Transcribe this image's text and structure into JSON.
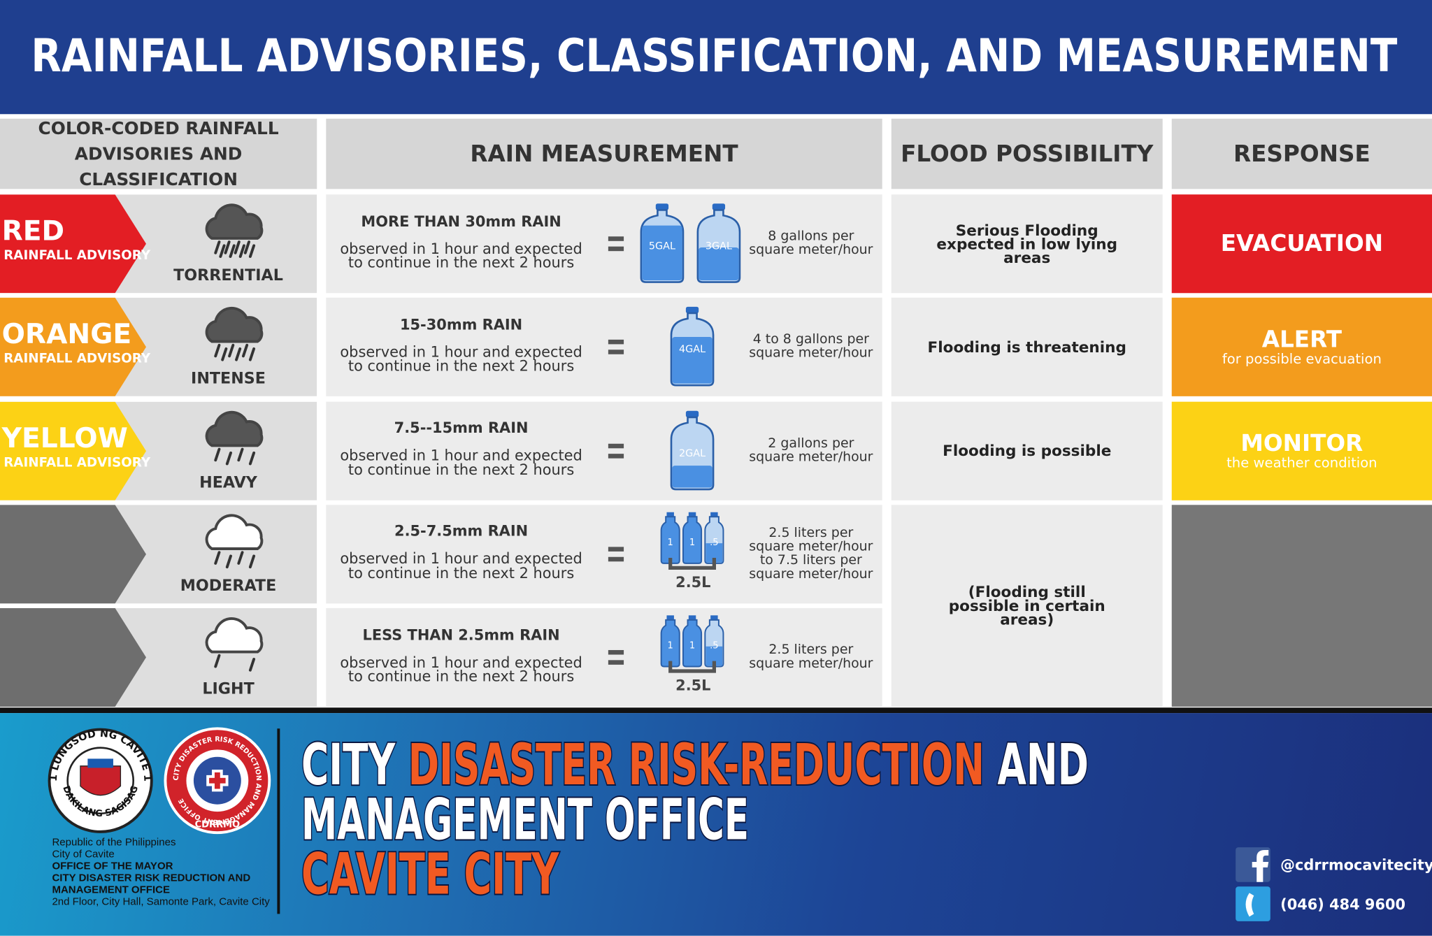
{
  "header": {
    "title": "RAINFALL ADVISORIES, CLASSIFICATION, AND MEASUREMENT"
  },
  "table": {
    "columns": [
      "COLOR-CODED RAINFALL ADVISORIES AND CLASSIFICATION",
      "RAIN MEASUREMENT",
      "FLOOD POSSIBILITY",
      "RESPONSE"
    ],
    "rows": [
      {
        "advisory": "RED",
        "advisory_type": "RAINFALL ADVISORY",
        "classification": "TORRENTIAL",
        "measurement": "MORE THAN 30mm RAIN",
        "description": "observed in 1 hour and expected to continue in the next 2 hours",
        "containers": [
          "5GAL",
          "3GAL"
        ],
        "equivalent": "8 gallons per square meter/hour",
        "flood": "Serious Flooding expected in low lying areas",
        "response": "EVACUATION"
      },
      {
        "advisory": "ORANGE",
        "advisory_type": "RAINFALL ADVISORY",
        "classification": "INTENSE",
        "measurement": "15-30mm RAIN",
        "description": "observed in 1 hour and expected to continue in the next 2 hours",
        "containers": [
          "4GAL"
        ],
        "equivalent": "4 to 8 gallons per square meter/hour",
        "flood": "Flooding is threatening",
        "response": "ALERT",
        "response_note": "for possible evacuation"
      },
      {
        "advisory": "YELLOW",
        "advisory_type": "RAINFALL ADVISORY",
        "classification": "HEAVY",
        "measurement": "7.5--15mm RAIN",
        "description": "observed in 1 hour and expected to continue in the next 2 hours",
        "containers": [
          "2GAL"
        ],
        "equivalent": "2 gallons per square meter/hour",
        "flood": "Flooding is possible",
        "response": "MONITOR",
        "response_note": "the weather condition"
      },
      {
        "classification": "MODERATE",
        "measurement": "2.5-7.5mm RAIN",
        "description": "observed in 1 hour and expected to continue in the next 2 hours",
        "containers": [
          "1",
          "1",
          ".5"
        ],
        "total": "2.5L",
        "equivalent": "2.5 liters per square meter/hour to 7.5 liters per square meter/hour"
      },
      {
        "classification": "LIGHT",
        "measurement": "LESS THAN 2.5mm RAIN",
        "description": "observed in 1 hour and expected to continue in the next 2 hours",
        "containers": [
          "1",
          "1",
          ".5"
        ],
        "total": "2.5L",
        "equivalent": "2.5 liters per square meter/hour"
      }
    ],
    "merged_flood": "(Flooding still possible in certain areas)"
  },
  "footer": {
    "seal": {
      "top": "1571 LUNGSOD NG CAVITE 1940",
      "bottom": "DAKILANG SAGISAG"
    },
    "logo": {
      "ring": "CITY DISASTER RISK REDUCTION AND MANAGEMENT OFFICE",
      "name": "CDRRMO"
    },
    "address": [
      "Republic of the Philippines",
      "City of Cavite",
      "OFFICE OF THE MAYOR",
      "CITY DISASTER RISK REDUCTION AND MANAGEMENT OFFICE",
      "2nd Floor, City Hall, Samonte Park, Cavite City"
    ],
    "office": {
      "line1": [
        "CITY ",
        "DISASTER RISK-REDUCTION",
        " AND"
      ],
      "line2": "MANAGEMENT OFFICE",
      "line3": "CAVITE CITY"
    },
    "facebook": "@cdrrmocavitecity",
    "phone": "(046) 484 9600"
  }
}
